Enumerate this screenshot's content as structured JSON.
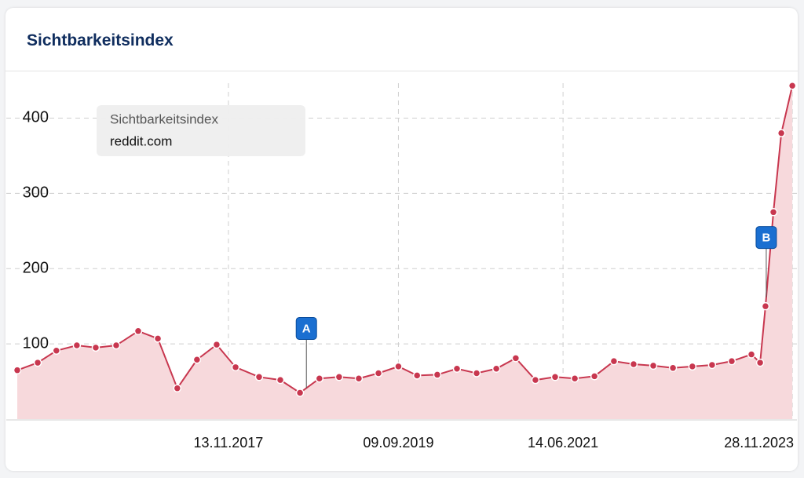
{
  "chart_data": {
    "type": "area",
    "title": "Sichtbarkeitsindex",
    "legend_title": "Sichtbarkeitsindex",
    "x": [
      "2015-08-10",
      "2015-10-29",
      "2016-01-10",
      "2016-03-30",
      "2016-06-12",
      "2016-08-31",
      "2016-11-25",
      "2017-02-10",
      "2017-04-27",
      "2017-07-13",
      "2017-09-28",
      "2017-12-11",
      "2018-03-13",
      "2018-06-04",
      "2018-08-20",
      "2018-11-04",
      "2019-01-20",
      "2019-04-07",
      "2019-06-23",
      "2019-09-09",
      "2019-11-21",
      "2020-02-08",
      "2020-04-25",
      "2020-07-11",
      "2020-09-26",
      "2020-12-11",
      "2021-02-26",
      "2021-05-14",
      "2021-07-30",
      "2021-10-15",
      "2021-12-30",
      "2022-03-17",
      "2022-06-02",
      "2022-08-18",
      "2022-11-02",
      "2023-01-18",
      "2023-04-05",
      "2023-06-21",
      "2023-07-25",
      "2023-08-15",
      "2023-09-15",
      "2023-10-16",
      "2023-11-28"
    ],
    "series": [
      {
        "name": "reddit.com",
        "color": "#c8374f",
        "fill": "#f7d9dc",
        "values": [
          65,
          75,
          91,
          98,
          95,
          98,
          117,
          107,
          41,
          79,
          99,
          69,
          56,
          52,
          35,
          54,
          56,
          54,
          61,
          70,
          58,
          59,
          67,
          61,
          67,
          81,
          52,
          56,
          54,
          57,
          77,
          73,
          71,
          68,
          70,
          72,
          77,
          86,
          75,
          150,
          275,
          380,
          443
        ]
      }
    ],
    "xlim": [
      "2015-06-28",
      "2023-12-16"
    ],
    "xticks": [
      {
        "value": "2017-11-13",
        "label": "13.11.2017"
      },
      {
        "value": "2019-09-09",
        "label": "09.09.2019"
      },
      {
        "value": "2021-06-14",
        "label": "14.06.2021"
      },
      {
        "value": "2023-11-28",
        "label": "28.11.2023"
      }
    ],
    "ylim": [
      0,
      462
    ],
    "yticks": [
      100,
      200,
      300,
      400
    ],
    "grid": true,
    "annotations": [
      {
        "label": "A",
        "x": "2018-09-14"
      },
      {
        "label": "B",
        "x": "2023-08-18"
      }
    ]
  }
}
